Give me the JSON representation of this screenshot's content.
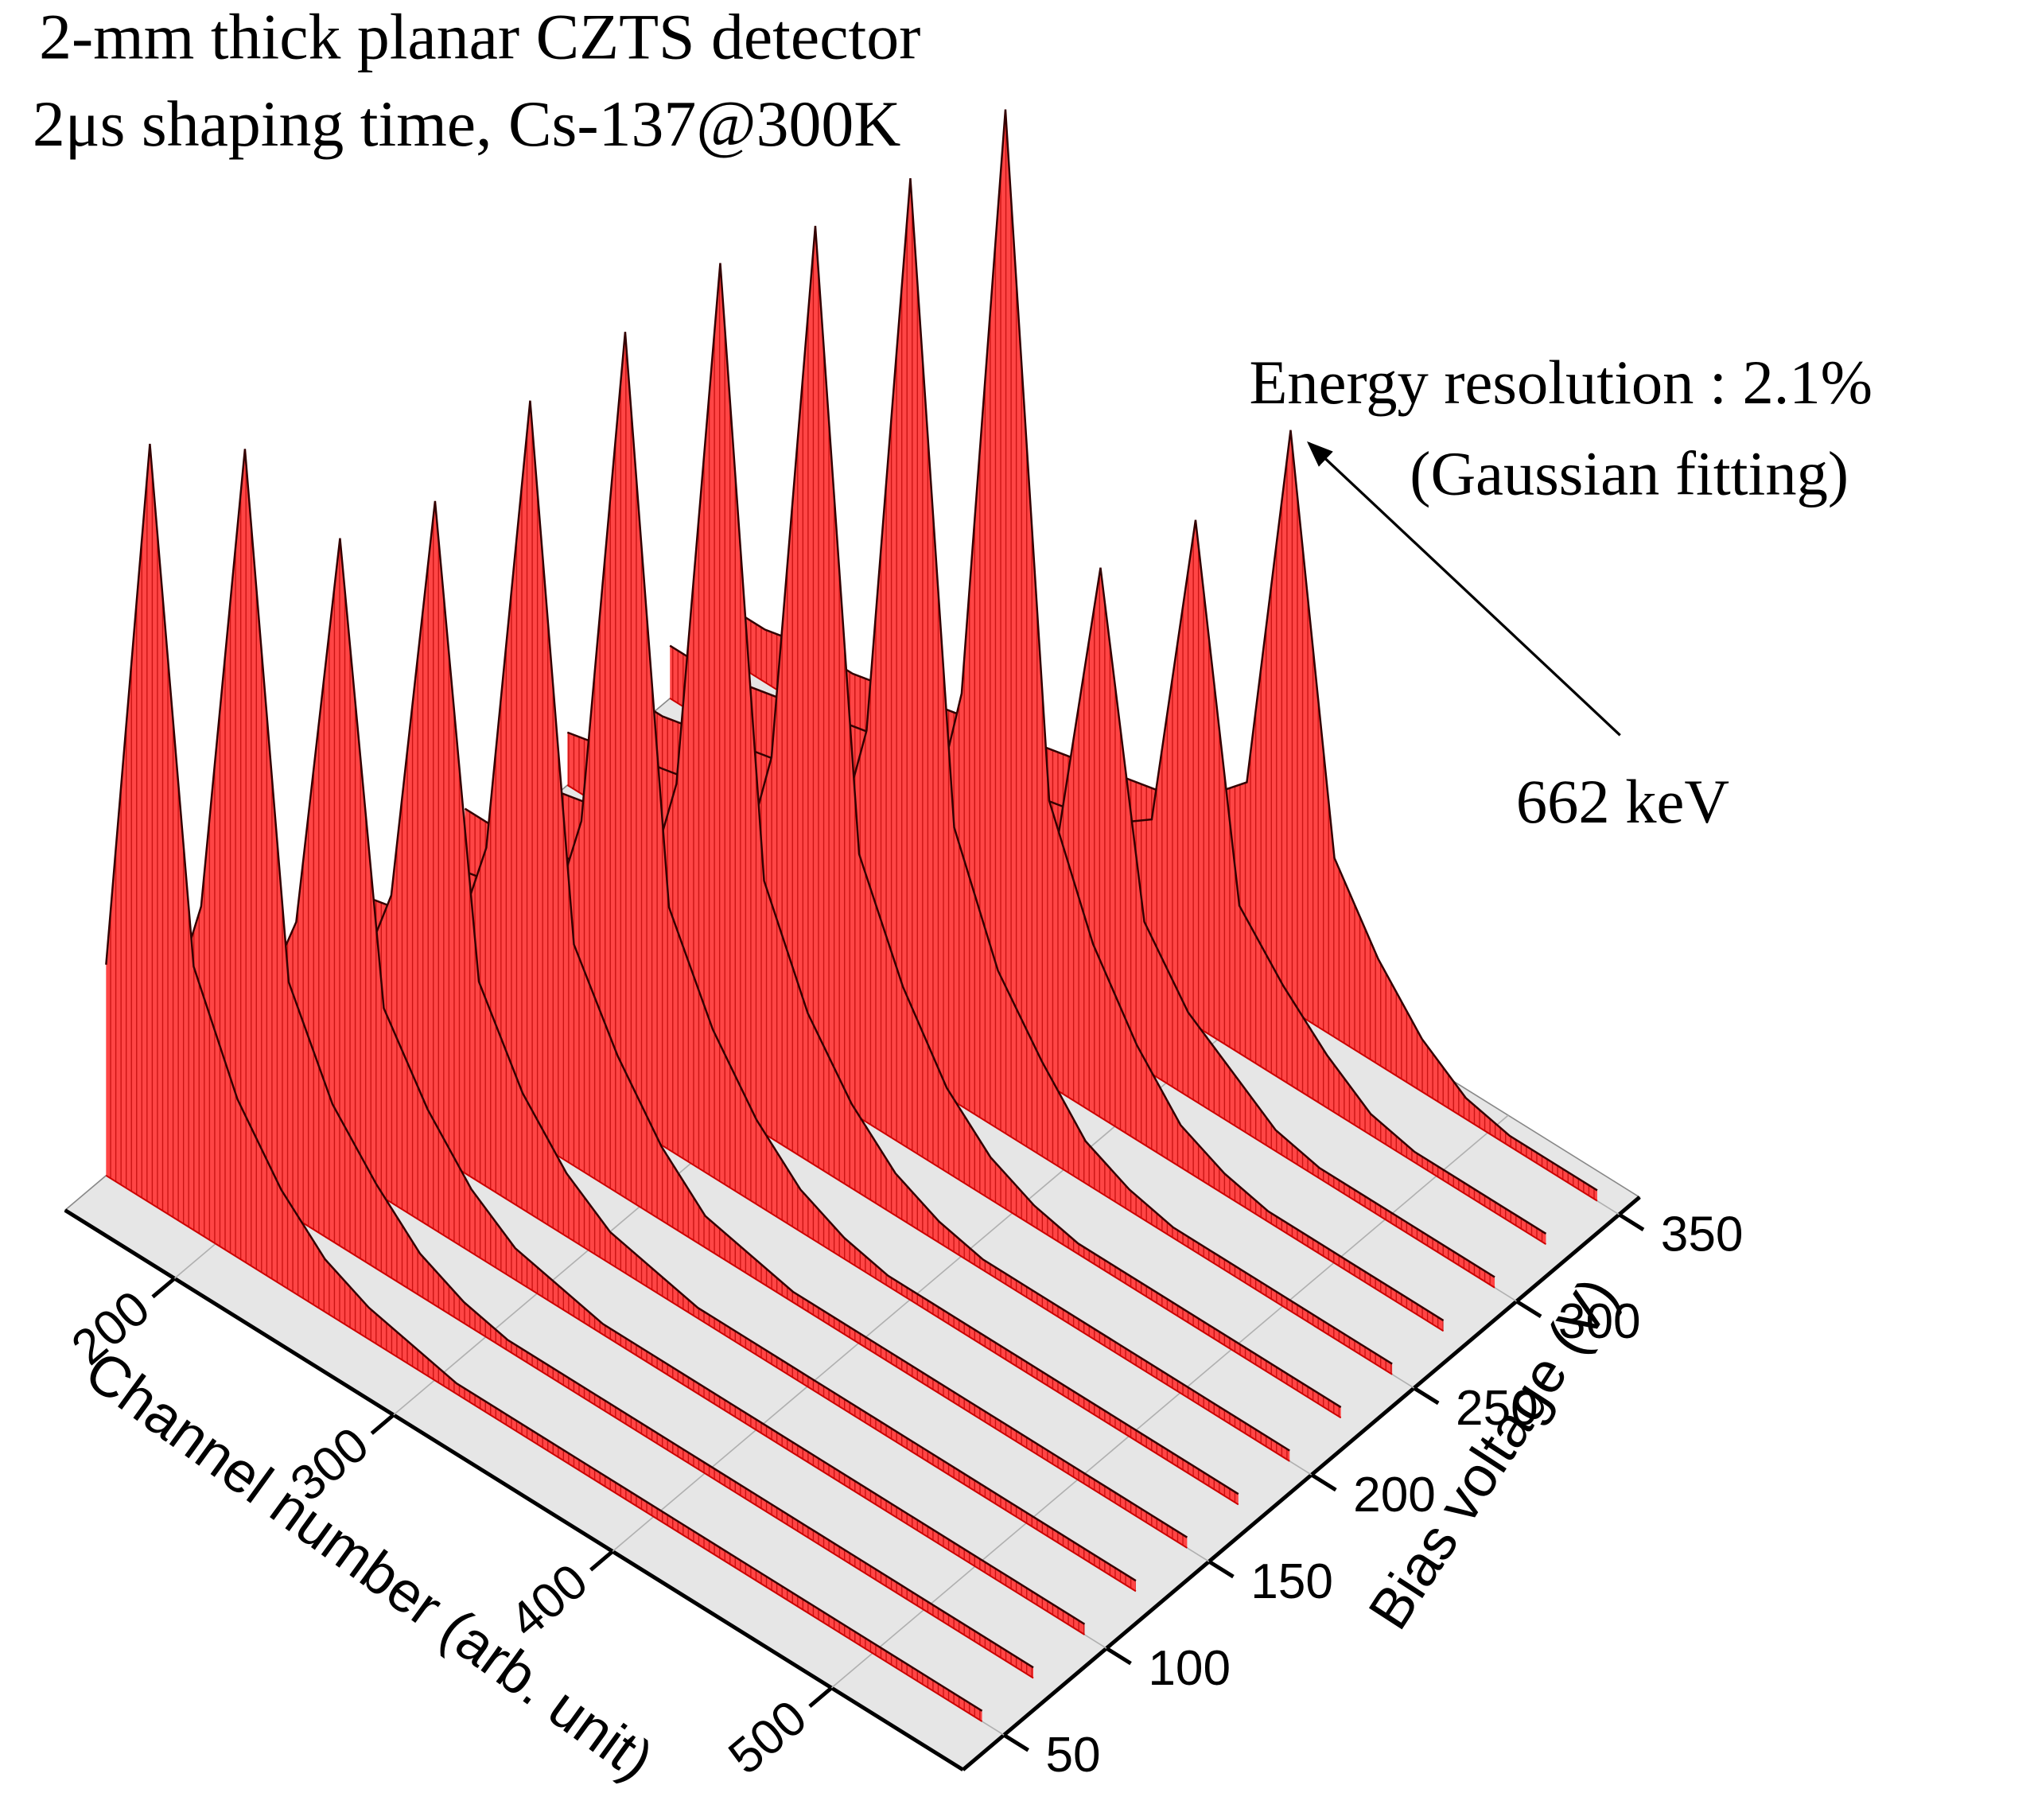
{
  "chart_data": {
    "type": "waterfall",
    "title": [
      "2-mm thick planar CZTS detector",
      "2μs shaping time, Cs-137@300K"
    ],
    "annotations": [
      "Energy resolution : 2.1%",
      "(Gaussian fitting)",
      "662 keV"
    ],
    "x_label": "Channel number (arb. unit)",
    "y_label": "Bias voltage (V)",
    "xlim": [
      150,
      560
    ],
    "xticks": [
      200,
      300,
      400,
      500
    ],
    "ylim": [
      30,
      360
    ],
    "yticks": [
      50,
      100,
      150,
      200,
      250,
      300,
      350
    ],
    "zlim": [
      0,
      100
    ],
    "color": "#ff2a2a",
    "grid": true,
    "x": [
      150,
      170,
      190,
      210,
      230,
      250,
      270,
      290,
      310,
      330,
      350,
      370,
      390,
      410,
      430,
      450,
      470,
      490,
      510,
      530,
      550
    ],
    "series": [
      {
        "bias": 50,
        "values": [
          20,
          72,
          25,
          15,
          9,
          5,
          3,
          2,
          1,
          1,
          1,
          1,
          1,
          1,
          1,
          1,
          1,
          1,
          1,
          1,
          1
        ]
      },
      {
        "bias": 75,
        "values": [
          8,
          24,
          70,
          22,
          13,
          8,
          4,
          2,
          1,
          1,
          1,
          1,
          1,
          1,
          1,
          1,
          1,
          1,
          1,
          1,
          1
        ]
      },
      {
        "bias": 100,
        "values": [
          8,
          9,
          21,
          60,
          18,
          11,
          6,
          3,
          2,
          1,
          1,
          1,
          1,
          1,
          1,
          1,
          1,
          1,
          1,
          1,
          1
        ]
      },
      {
        "bias": 125,
        "values": [
          7,
          8,
          9,
          22,
          62,
          19,
          11,
          6,
          3,
          2,
          1,
          1,
          1,
          1,
          1,
          1,
          1,
          1,
          1,
          1,
          1
        ]
      },
      {
        "bias": 150,
        "values": [
          7,
          8,
          9,
          10,
          25,
          70,
          21,
          13,
          7,
          3,
          2,
          1,
          1,
          1,
          1,
          1,
          1,
          1,
          1,
          1,
          1
        ]
      },
      {
        "bias": 175,
        "values": [
          6,
          7,
          8,
          9,
          10,
          26,
          75,
          23,
          14,
          8,
          4,
          2,
          1,
          1,
          1,
          1,
          1,
          1,
          1,
          1,
          1
        ]
      },
      {
        "bias": 200,
        "values": [
          6,
          7,
          8,
          9,
          10,
          11,
          28,
          80,
          24,
          14,
          8,
          4,
          2,
          1,
          1,
          1,
          1,
          1,
          1,
          1,
          1
        ]
      },
      {
        "bias": 225,
        "values": [
          6,
          6,
          7,
          8,
          9,
          10,
          11,
          29,
          82,
          25,
          15,
          8,
          4,
          2,
          1,
          1,
          1,
          1,
          1,
          1,
          1
        ]
      },
      {
        "bias": 250,
        "values": [
          5,
          6,
          7,
          8,
          9,
          10,
          11,
          12,
          30,
          85,
          26,
          15,
          9,
          4,
          2,
          1,
          1,
          1,
          1,
          1,
          1
        ]
      },
      {
        "bias": 275,
        "values": [
          5,
          6,
          7,
          8,
          8,
          9,
          10,
          11,
          12,
          32,
          90,
          27,
          16,
          9,
          4,
          2,
          1,
          1,
          1,
          1,
          1
        ]
      },
      {
        "bias": 300,
        "values": [
          5,
          5,
          6,
          7,
          8,
          9,
          10,
          11,
          12,
          13,
          16,
          45,
          14,
          8,
          5,
          2,
          1,
          1,
          1,
          1,
          1
        ]
      },
      {
        "bias": 325,
        "values": [
          5,
          5,
          6,
          7,
          8,
          9,
          10,
          11,
          12,
          13,
          14,
          17,
          48,
          14,
          9,
          5,
          2,
          1,
          1,
          1,
          1
        ]
      },
      {
        "bias": 350,
        "values": [
          5,
          5,
          6,
          6,
          7,
          8,
          9,
          10,
          11,
          12,
          13,
          15,
          19,
          55,
          17,
          10,
          5,
          2,
          1,
          1,
          1
        ]
      }
    ]
  }
}
